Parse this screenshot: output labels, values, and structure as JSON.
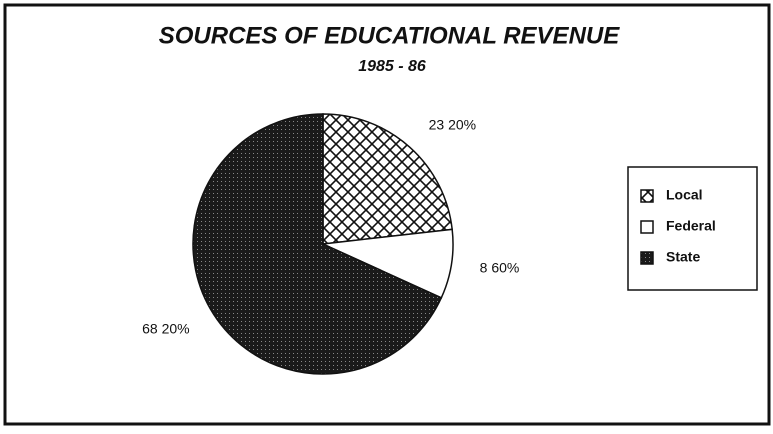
{
  "chart_data": {
    "type": "pie",
    "title": "SOURCES OF EDUCATIONAL REVENUE",
    "subtitle": "1985 - 86",
    "categories": [
      "Local",
      "Federal",
      "State"
    ],
    "values": [
      23.2,
      8.6,
      68.2
    ],
    "value_labels": [
      "23 20%",
      "8 60%",
      "68 20%"
    ]
  }
}
